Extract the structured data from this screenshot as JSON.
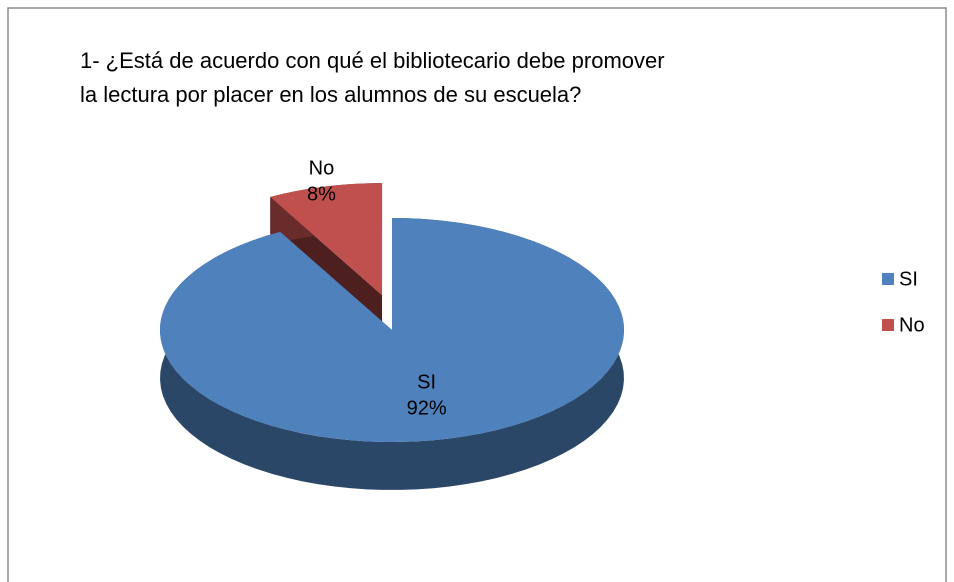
{
  "chart_data": {
    "type": "pie",
    "title": "1- ¿Está de acuerdo con qué el bibliotecario debe promover\nla lectura por placer en los alumnos de su escuela?",
    "categories": [
      "SI",
      "No"
    ],
    "values": [
      92,
      8
    ],
    "value_labels": [
      "92%",
      "8%"
    ],
    "colors": [
      "#4f81bd",
      "#c0504d"
    ],
    "legend": "right"
  }
}
